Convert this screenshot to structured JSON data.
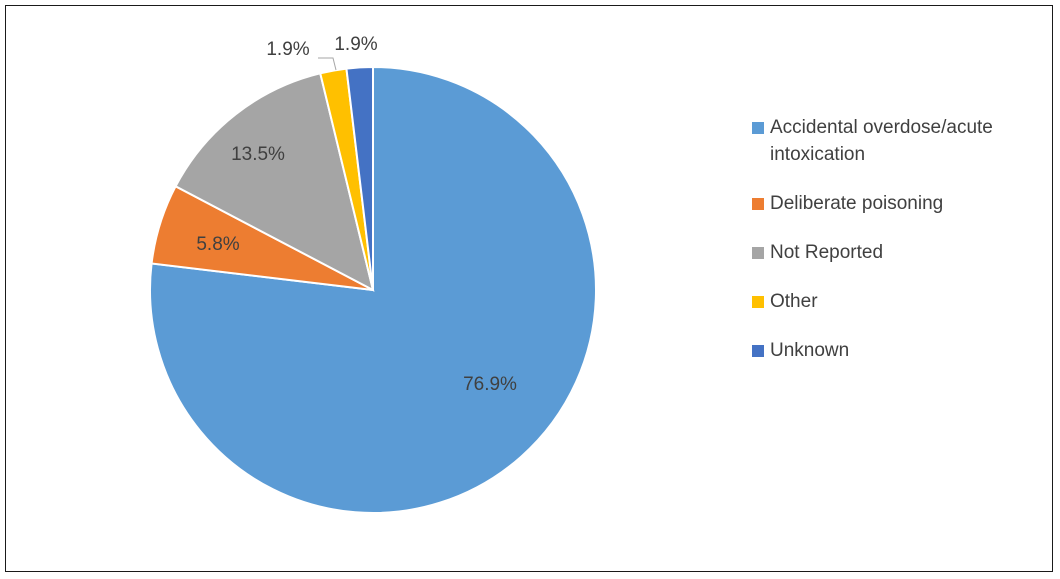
{
  "chart_data": {
    "type": "pie",
    "title": "",
    "categories": [
      "Accidental overdose/acute intoxication",
      "Deliberate poisoning",
      "Not Reported",
      "Other",
      "Unknown"
    ],
    "values": [
      76.9,
      5.8,
      13.5,
      1.9,
      1.9
    ],
    "data_labels": [
      "76.9%",
      "5.8%",
      "13.5%",
      "1.9%",
      "1.9%"
    ],
    "colors": [
      "#5B9BD5",
      "#ED7D31",
      "#A5A5A5",
      "#FFC000",
      "#4472C4"
    ],
    "legend_position": "right",
    "start_angle": "12 o'clock",
    "direction": "clockwise"
  }
}
